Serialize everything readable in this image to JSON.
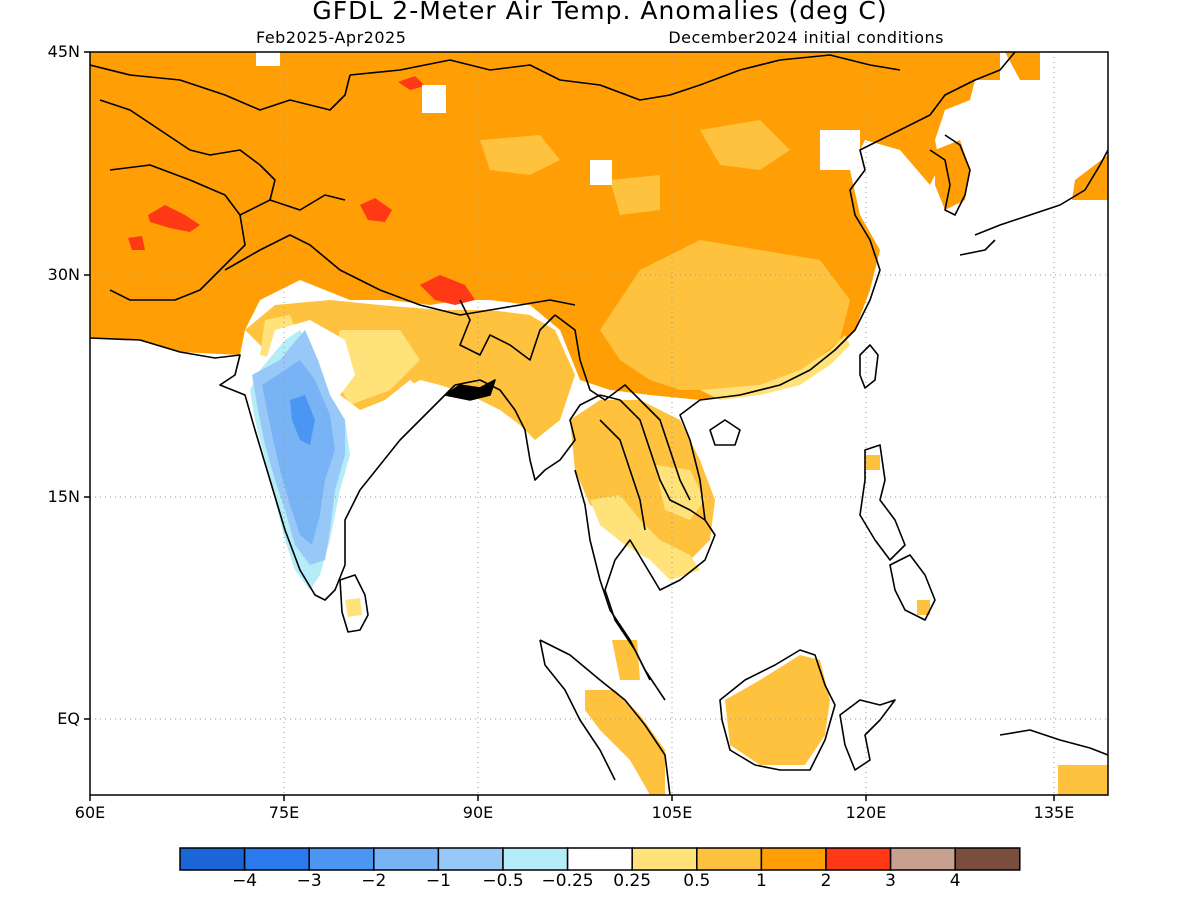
{
  "title": "GFDL 2-Meter Air Temp. Anomalies (deg C)",
  "subtitle_left": "Feb2025-Apr2025",
  "subtitle_right": "December2024 initial conditions",
  "lat_labels": [
    "45N",
    "30N",
    "15N",
    "EQ"
  ],
  "lon_labels": [
    "60E",
    "75E",
    "90E",
    "105E",
    "120E",
    "135E"
  ],
  "colorbar": {
    "colors": [
      "#1a66d6",
      "#2a7aee",
      "#4a96f2",
      "#78b4f5",
      "#98c8f7",
      "#b4ecf8",
      "#ffffff",
      "#ffe27a",
      "#ffc23e",
      "#ff9e05",
      "#ff3815",
      "#c8a090",
      "#7a4e3e"
    ],
    "labels": [
      "-4",
      "-3",
      "-2",
      "-1",
      "-0.5",
      "-0.25",
      "0.25",
      "0.5",
      "1",
      "2",
      "3",
      "4"
    ]
  },
  "colors": {
    "ocean": "#ffffff",
    "anomaly_1_2": "#ff9e05",
    "anomaly_0_5_1": "#ffc23e",
    "anomaly_0_25_0_5": "#ffe27a",
    "anomaly_2_3": "#ff3815",
    "coast": "#000000"
  }
}
